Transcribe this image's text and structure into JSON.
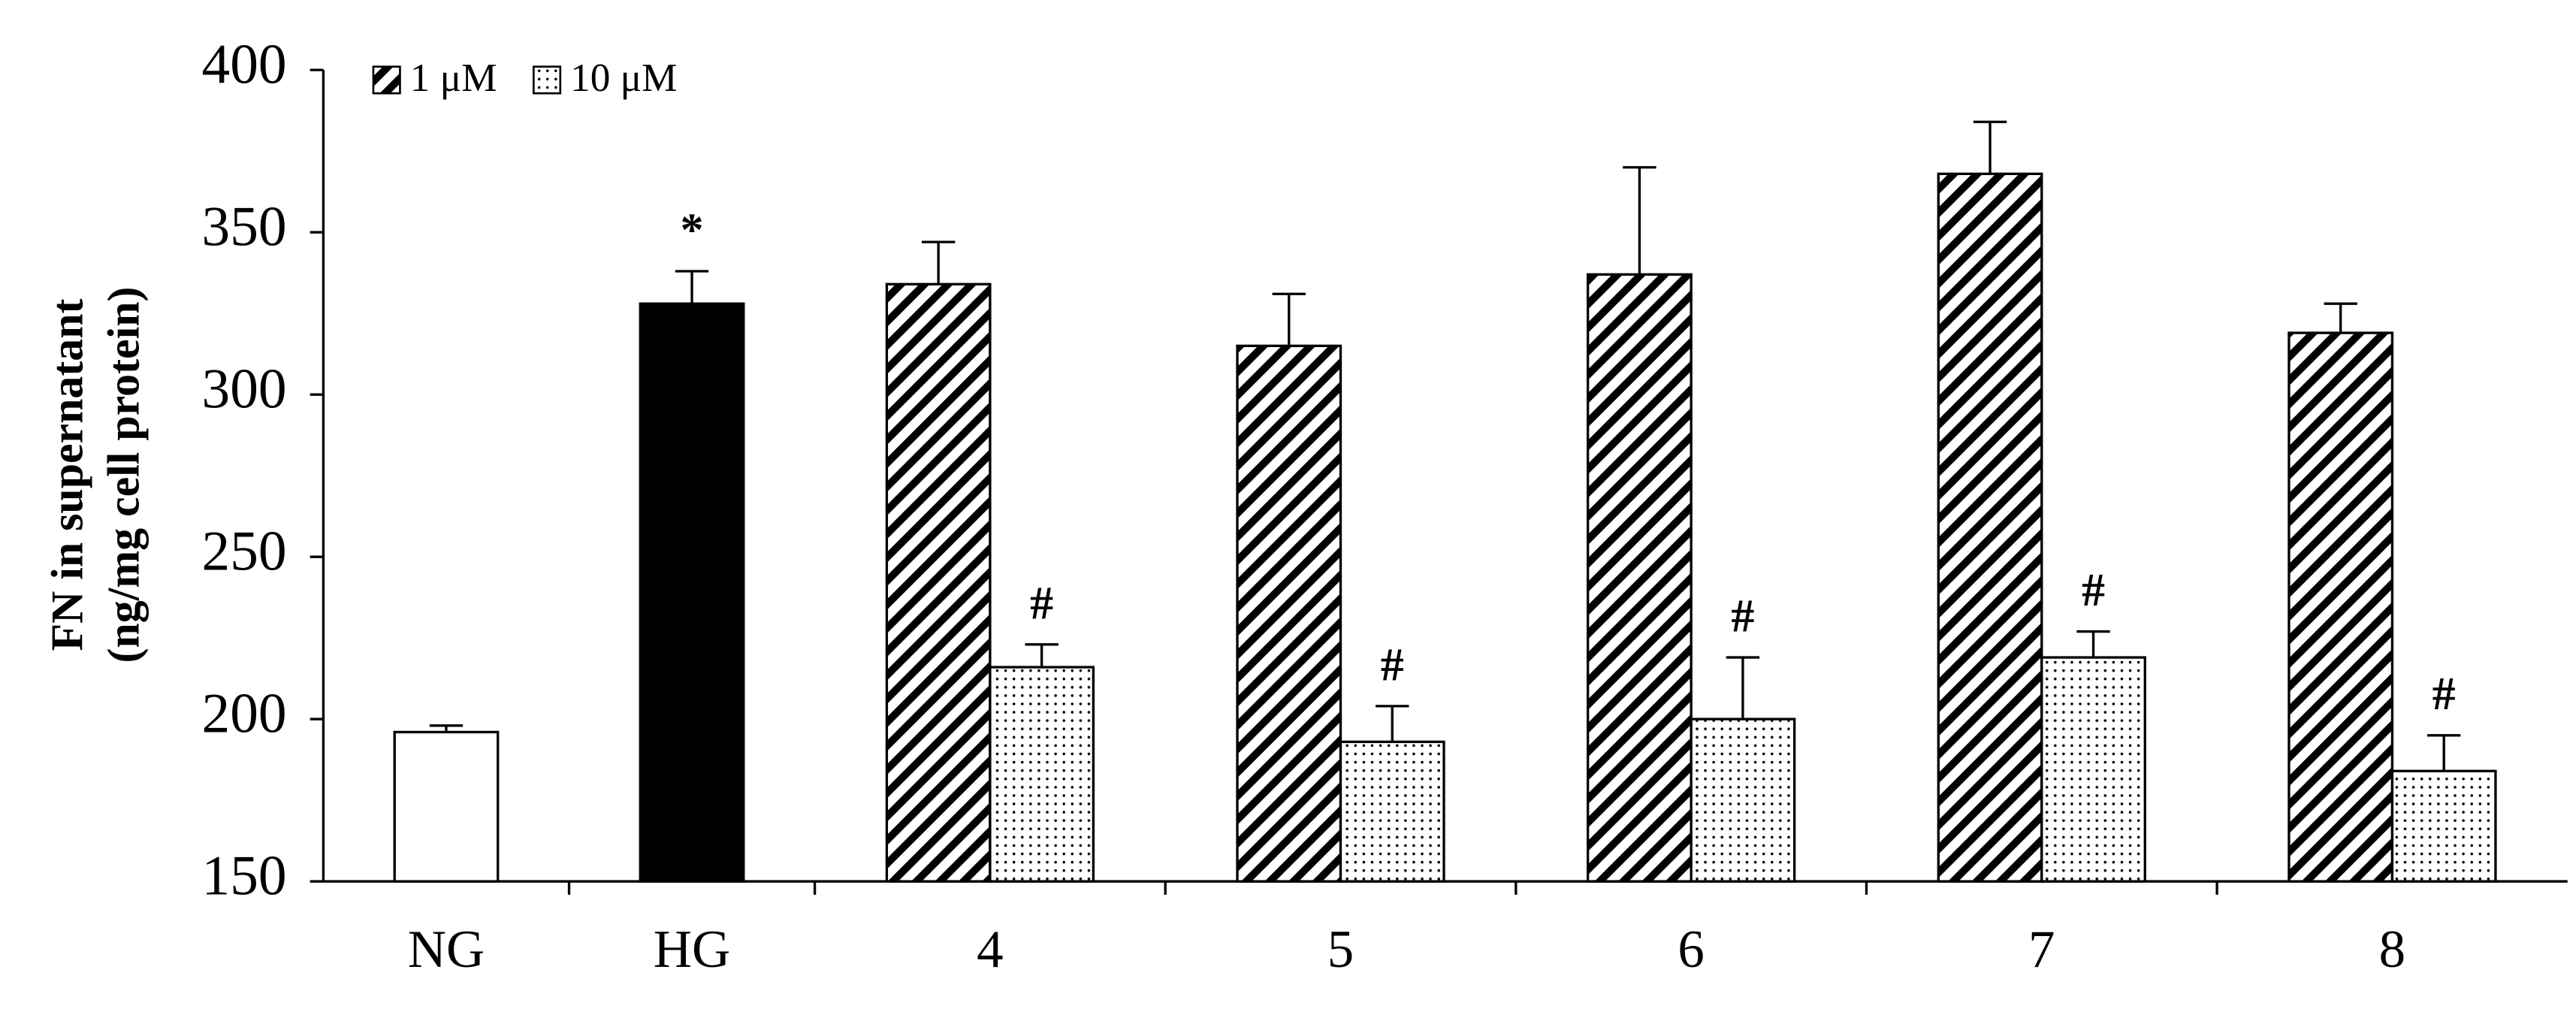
{
  "chart_data": {
    "type": "bar",
    "y_label_lines": [
      "FN in supernatant",
      "(ng/mg cell protein)"
    ],
    "categories": [
      "NG",
      "HG",
      "4",
      "5",
      "6",
      "7",
      "8"
    ],
    "values": [
      196,
      328,
      null,
      null,
      null,
      null,
      null
    ],
    "errors": [
      2,
      10,
      null,
      null,
      null,
      null,
      null
    ],
    "colors": [
      "#ffffff",
      "#000000",
      null,
      null,
      null,
      null,
      null
    ],
    "marks": [
      null,
      "*",
      null,
      null,
      null,
      null,
      null
    ],
    "series": [
      {
        "name": "1 μM",
        "pattern": "hatch",
        "values": [
          null,
          null,
          334,
          315,
          337,
          368,
          319
        ],
        "errors": [
          null,
          null,
          13,
          16,
          33,
          16,
          9
        ],
        "marks": [
          null,
          null,
          null,
          null,
          null,
          null,
          null
        ]
      },
      {
        "name": "10 μM",
        "pattern": "dots",
        "values": [
          null,
          null,
          216,
          193,
          200,
          219,
          184
        ],
        "errors": [
          null,
          null,
          7,
          11,
          19,
          8,
          11
        ],
        "marks": [
          null,
          null,
          "#",
          "#",
          "#",
          "#",
          "#"
        ]
      }
    ],
    "ylim": [
      150,
      400
    ],
    "yticks": [
      150,
      200,
      250,
      300,
      350,
      400
    ],
    "legend": "top-left"
  }
}
